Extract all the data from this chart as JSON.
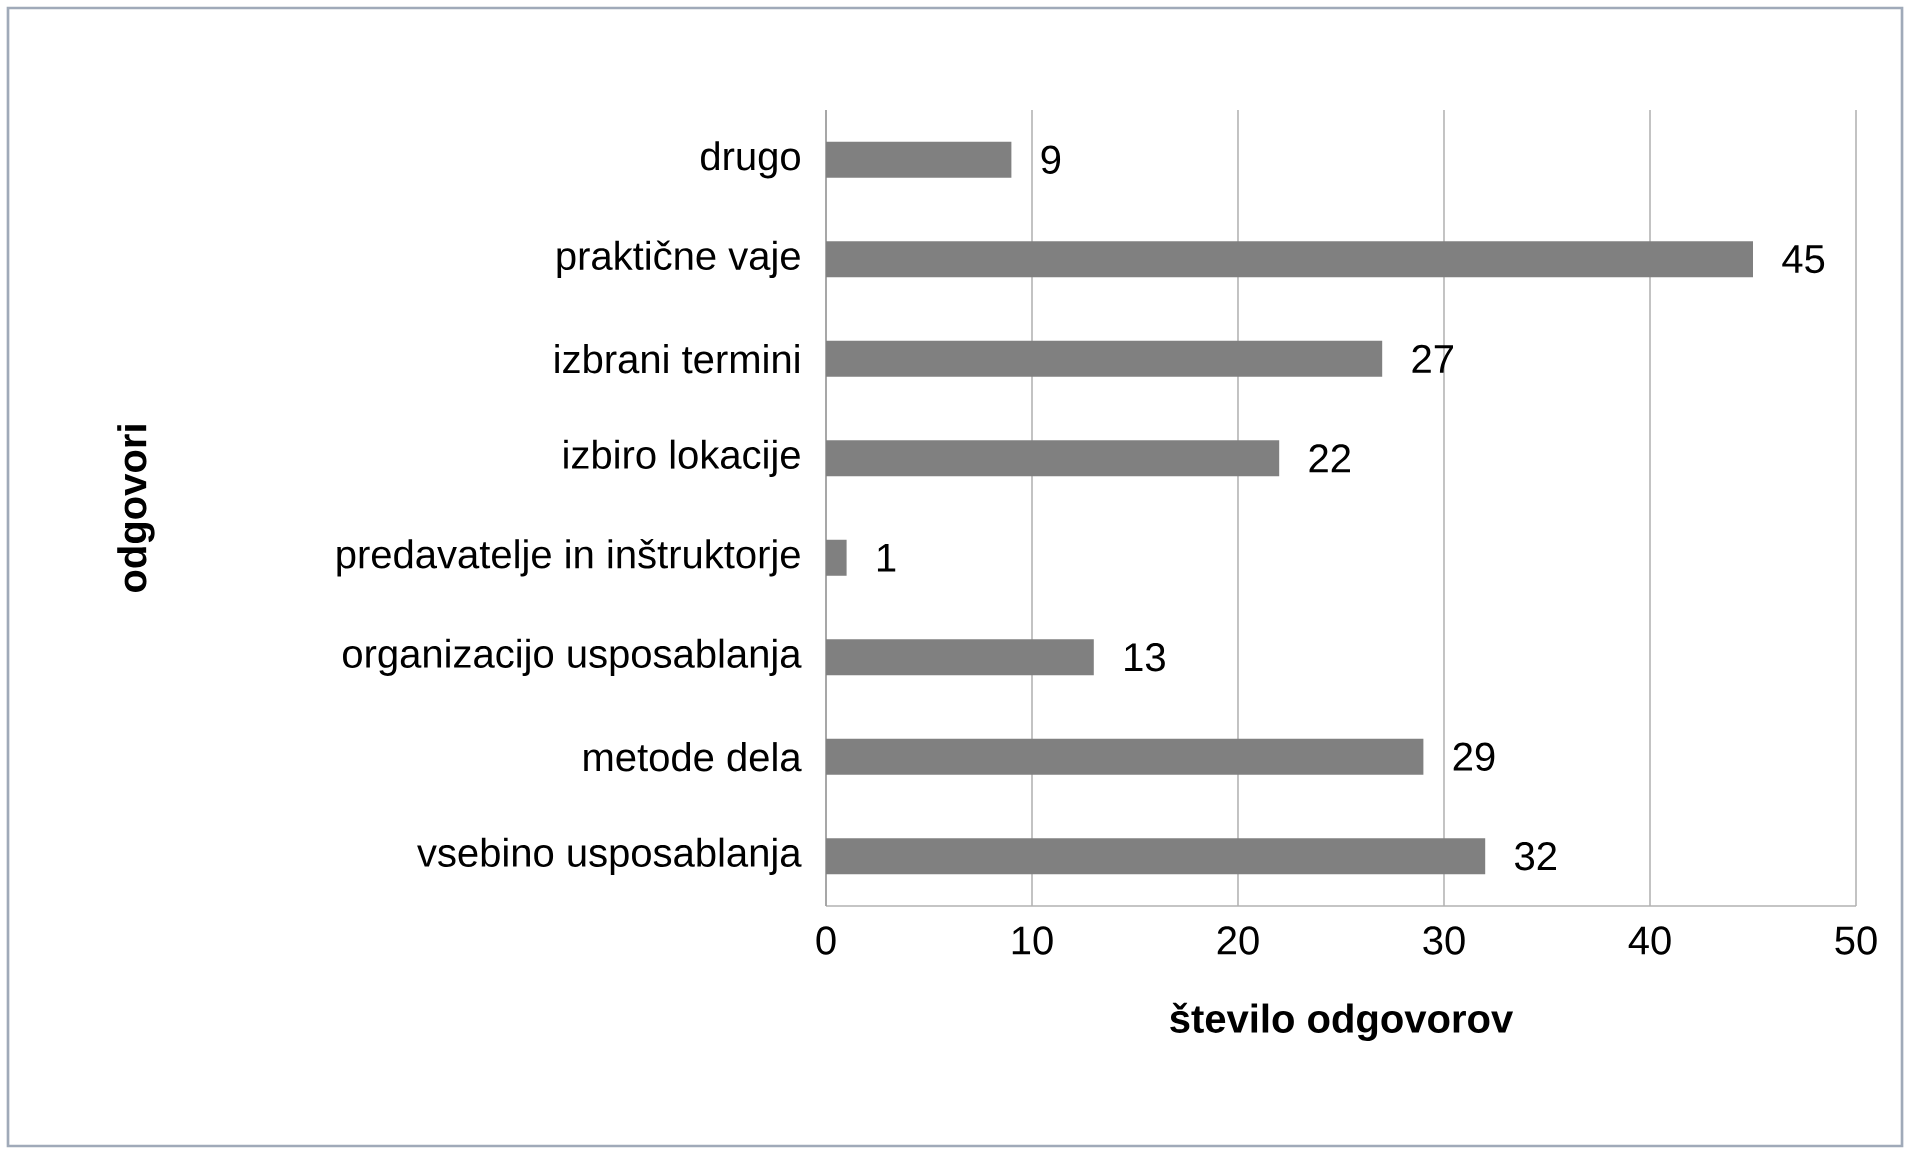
{
  "chart_data": {
    "type": "bar",
    "orientation": "horizontal",
    "categories": [
      "drugo",
      "praktične vaje",
      "izbrani termini",
      "izbiro lokacije",
      "predavatelje in inštruktorje",
      "organizacijo usposablanja",
      "metode dela",
      "vsebino usposablanja"
    ],
    "values": [
      9,
      45,
      27,
      22,
      1,
      13,
      29,
      32
    ],
    "color": "#808080",
    "xlim": [
      0,
      50
    ],
    "xticks": [
      0,
      10,
      20,
      30,
      40,
      50
    ],
    "xlabel": "število odgovorov",
    "ylabel": "odgovori",
    "grid": "x",
    "data_labels": true
  }
}
